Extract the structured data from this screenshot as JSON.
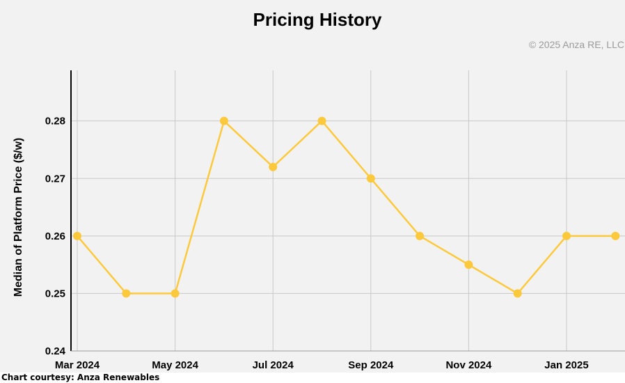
{
  "chart_data": {
    "type": "line",
    "title": "Pricing History",
    "credit": "© 2025 Anza RE, LLC",
    "xlabel": "",
    "ylabel": "Median of Platform Price ($/w)",
    "x": [
      "Mar 2024",
      "Apr 2024",
      "May 2024",
      "Jun 2024",
      "Jul 2024",
      "Aug 2024",
      "Sep 2024",
      "Oct 2024",
      "Nov 2024",
      "Dec 2024",
      "Jan 2025",
      "Feb 2025"
    ],
    "x_tick_labels": [
      "Mar 2024",
      "May 2024",
      "Jul 2024",
      "Sep 2024",
      "Nov 2024",
      "Jan 2025"
    ],
    "series": [
      {
        "values": [
          0.26,
          0.25,
          0.25,
          0.28,
          0.272,
          0.28,
          0.27,
          0.26,
          0.255,
          0.25,
          0.26,
          0.26
        ]
      }
    ],
    "y_ticks": [
      "0.24",
      "0.25",
      "0.26",
      "0.27",
      "0.28"
    ],
    "ylim": [
      0.24,
      0.2888
    ],
    "grid": true,
    "legend": "none"
  },
  "colors": {
    "line": "#fdc93c",
    "grid": "#c8c8c8",
    "panel": "#f2f2f2",
    "axis": "#000000",
    "credit": "#9a9a9a"
  },
  "caption": "Chart courtesy: Anza Renewables"
}
